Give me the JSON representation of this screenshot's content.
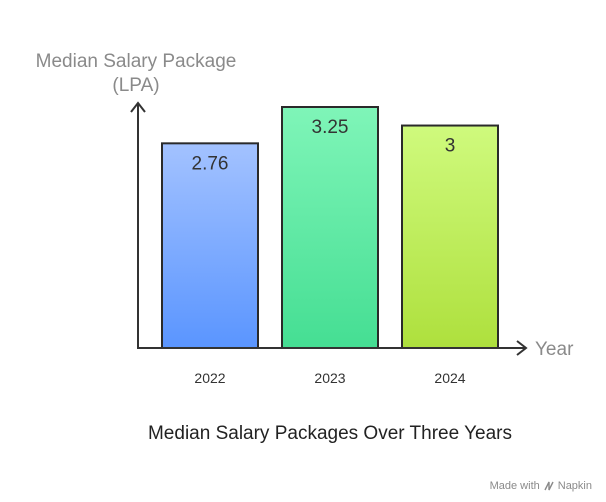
{
  "chart_data": {
    "type": "bar",
    "title": "Median Salary Packages Over Three Years",
    "ylabel_lines": [
      "Median Salary Package",
      "(LPA)"
    ],
    "xlabel": "Year",
    "categories": [
      "2022",
      "2023",
      "2024"
    ],
    "values": [
      2.76,
      3.25,
      3
    ],
    "value_labels": [
      "2.76",
      "3.25",
      "3"
    ],
    "gradients": [
      {
        "top": "#a3c2ff",
        "bottom": "#5a95ff"
      },
      {
        "top": "#7ff5b8",
        "bottom": "#45de93"
      },
      {
        "top": "#cffa7d",
        "bottom": "#aee03d"
      }
    ],
    "bar_stroke": "#2a2a2a",
    "axis_color": "#333333",
    "grid": false,
    "legend": "none"
  },
  "watermark": {
    "prefix": "Made with",
    "brand": "Napkin",
    "icon": "napkin-logo-icon"
  }
}
